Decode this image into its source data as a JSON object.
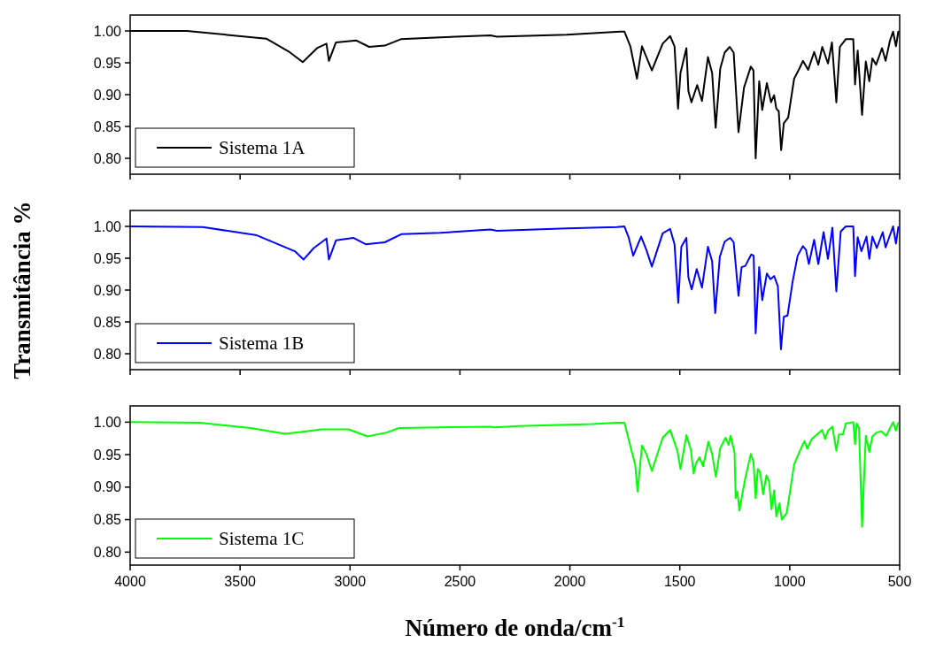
{
  "chart_data": [
    {
      "type": "line",
      "xlim": [
        4000,
        500
      ],
      "ylim": [
        0.775,
        1.025
      ],
      "xticks": [
        4000,
        3500,
        3000,
        2500,
        2000,
        1500,
        1000,
        500
      ],
      "yticks": [
        {
          "value": 0.8,
          "label": "0.80"
        },
        {
          "value": 0.85,
          "label": "0.85"
        },
        {
          "value": 0.9,
          "label": "0.90"
        },
        {
          "value": 0.95,
          "label": "0.95"
        },
        {
          "value": 1.0,
          "label": "1.00"
        }
      ],
      "tick_labels": "y",
      "legend": "bottom left",
      "grid": false,
      "series": [
        {
          "name": "Sistema 1A",
          "color": "#000000",
          "x": [
            4000,
            3742,
            3381,
            3280,
            3215,
            3150,
            3107,
            3096,
            3064,
            2971,
            2913,
            2842,
            2769,
            2590,
            2361,
            2332,
            2014,
            1772,
            1752,
            1725,
            1695,
            1672,
            1627,
            1578,
            1544,
            1524,
            1508,
            1497,
            1470,
            1461,
            1447,
            1421,
            1399,
            1372,
            1353,
            1337,
            1316,
            1296,
            1273,
            1255,
            1233,
            1208,
            1177,
            1165,
            1155,
            1139,
            1125,
            1104,
            1085,
            1071,
            1061,
            1050,
            1039,
            1027,
            1007,
            980,
            956,
            940,
            916,
            889,
            870,
            852,
            826,
            808,
            788,
            772,
            745,
            711,
            703,
            691,
            671,
            654,
            638,
            624,
            607,
            580,
            564,
            544,
            530,
            517,
            506
          ],
          "values": [
            1.0,
            1.0,
            0.988,
            0.968,
            0.951,
            0.973,
            0.98,
            0.953,
            0.982,
            0.985,
            0.975,
            0.977,
            0.987,
            0.99,
            0.993,
            0.991,
            0.994,
            0.999,
            0.999,
            0.976,
            0.925,
            0.976,
            0.938,
            0.98,
            0.992,
            0.976,
            0.878,
            0.934,
            0.973,
            0.906,
            0.888,
            0.915,
            0.89,
            0.959,
            0.934,
            0.848,
            0.941,
            0.966,
            0.975,
            0.966,
            0.841,
            0.911,
            0.944,
            0.938,
            0.8,
            0.921,
            0.876,
            0.918,
            0.888,
            0.899,
            0.878,
            0.874,
            0.813,
            0.855,
            0.864,
            0.925,
            0.941,
            0.953,
            0.939,
            0.967,
            0.947,
            0.975,
            0.949,
            0.982,
            0.888,
            0.975,
            0.987,
            0.987,
            0.916,
            0.969,
            0.868,
            0.952,
            0.921,
            0.957,
            0.947,
            0.973,
            0.953,
            0.985,
            0.999,
            0.976,
            0.999
          ]
        }
      ]
    },
    {
      "type": "line",
      "xlim": [
        4000,
        500
      ],
      "ylim": [
        0.775,
        1.025
      ],
      "xticks": [
        4000,
        3500,
        3000,
        2500,
        2000,
        1500,
        1000,
        500
      ],
      "yticks": [
        {
          "value": 0.8,
          "label": "0.80"
        },
        {
          "value": 0.85,
          "label": "0.85"
        },
        {
          "value": 0.9,
          "label": "0.90"
        },
        {
          "value": 0.95,
          "label": "0.95"
        },
        {
          "value": 1.0,
          "label": "1.00"
        }
      ],
      "tick_labels": "y",
      "legend": "bottom left",
      "grid": false,
      "ylabel": "Transmitância %",
      "series": [
        {
          "name": "Sistema 1B",
          "color": "#0000ff",
          "x": [
            4000,
            3670,
            3424,
            3251,
            3211,
            3165,
            3107,
            3096,
            3064,
            2985,
            2929,
            2842,
            2765,
            2590,
            2361,
            2332,
            2014,
            1786,
            1752,
            1732,
            1712,
            1676,
            1652,
            1627,
            1578,
            1544,
            1524,
            1507,
            1493,
            1470,
            1461,
            1446,
            1423,
            1399,
            1372,
            1353,
            1339,
            1318,
            1296,
            1271,
            1255,
            1233,
            1219,
            1202,
            1175,
            1164,
            1155,
            1139,
            1125,
            1104,
            1088,
            1071,
            1054,
            1040,
            1027,
            1010,
            987,
            964,
            940,
            926,
            913,
            889,
            870,
            846,
            826,
            806,
            788,
            768,
            745,
            711,
            703,
            691,
            674,
            651,
            638,
            624,
            604,
            577,
            564,
            530,
            517,
            506
          ],
          "values": [
            1.0,
            0.999,
            0.986,
            0.961,
            0.948,
            0.966,
            0.981,
            0.948,
            0.978,
            0.982,
            0.972,
            0.975,
            0.988,
            0.99,
            0.995,
            0.993,
            0.997,
            0.999,
            1.0,
            0.982,
            0.954,
            0.984,
            0.963,
            0.937,
            0.989,
            0.996,
            0.972,
            0.88,
            0.968,
            0.982,
            0.92,
            0.901,
            0.933,
            0.904,
            0.968,
            0.945,
            0.864,
            0.952,
            0.976,
            0.982,
            0.975,
            0.891,
            0.936,
            0.938,
            0.956,
            0.954,
            0.832,
            0.936,
            0.884,
            0.926,
            0.917,
            0.922,
            0.906,
            0.807,
            0.858,
            0.86,
            0.913,
            0.954,
            0.969,
            0.963,
            0.941,
            0.979,
            0.941,
            0.991,
            0.949,
            0.998,
            0.898,
            0.992,
            1.0,
            1.0,
            0.922,
            0.983,
            0.961,
            0.984,
            0.949,
            0.984,
            0.966,
            0.991,
            0.967,
            1.0,
            0.973,
            0.999
          ]
        }
      ]
    },
    {
      "type": "line",
      "xlim": [
        4000,
        500
      ],
      "ylim": [
        0.78,
        1.025
      ],
      "xticks": [
        4000,
        3500,
        3000,
        2500,
        2000,
        1500,
        1000,
        500
      ],
      "yticks": [
        {
          "value": 0.8,
          "label": "0.80"
        },
        {
          "value": 0.85,
          "label": "0.85"
        },
        {
          "value": 0.9,
          "label": "0.90"
        },
        {
          "value": 0.95,
          "label": "0.95"
        },
        {
          "value": 1.0,
          "label": "1.00"
        }
      ],
      "legend": "bottom left",
      "grid": false,
      "xlabel": "Número de onda/cm$^{-1}$",
      "series": [
        {
          "name": "Sistema 1C",
          "color": "#00ff00",
          "x": [
            4000,
            3683,
            3453,
            3295,
            3223,
            3129,
            3007,
            2920,
            2834,
            2777,
            2590,
            2361,
            2342,
            2232,
            1899,
            1785,
            1752,
            1725,
            1703,
            1692,
            1672,
            1652,
            1627,
            1578,
            1544,
            1511,
            1497,
            1470,
            1450,
            1437,
            1426,
            1410,
            1394,
            1370,
            1353,
            1336,
            1316,
            1292,
            1278,
            1269,
            1251,
            1246,
            1238,
            1229,
            1202,
            1177,
            1165,
            1155,
            1145,
            1135,
            1121,
            1106,
            1094,
            1083,
            1071,
            1061,
            1047,
            1036,
            1023,
            1014,
            1000,
            980,
            956,
            933,
            920,
            900,
            853,
            839,
            826,
            806,
            788,
            776,
            758,
            745,
            711,
            703,
            695,
            685,
            671,
            654,
            638,
            624,
            604,
            584,
            561,
            530,
            517,
            506
          ],
          "values": [
            1.0,
            0.999,
            0.991,
            0.982,
            0.985,
            0.989,
            0.989,
            0.978,
            0.984,
            0.991,
            0.992,
            0.993,
            0.992,
            0.994,
            0.997,
            0.999,
            0.999,
            0.963,
            0.935,
            0.893,
            0.964,
            0.951,
            0.925,
            0.976,
            0.988,
            0.956,
            0.928,
            0.98,
            0.958,
            0.921,
            0.937,
            0.946,
            0.932,
            0.97,
            0.951,
            0.916,
            0.96,
            0.976,
            0.965,
            0.979,
            0.953,
            0.883,
            0.893,
            0.864,
            0.914,
            0.951,
            0.939,
            0.883,
            0.928,
            0.923,
            0.889,
            0.918,
            0.909,
            0.866,
            0.895,
            0.855,
            0.875,
            0.85,
            0.856,
            0.86,
            0.89,
            0.935,
            0.954,
            0.971,
            0.959,
            0.974,
            0.988,
            0.974,
            0.987,
            0.993,
            0.956,
            0.981,
            0.981,
            0.998,
            1.0,
            0.966,
            0.998,
            0.991,
            0.839,
            0.979,
            0.954,
            0.978,
            0.984,
            0.986,
            0.979,
            1.0,
            0.987,
            0.999
          ]
        }
      ]
    }
  ]
}
